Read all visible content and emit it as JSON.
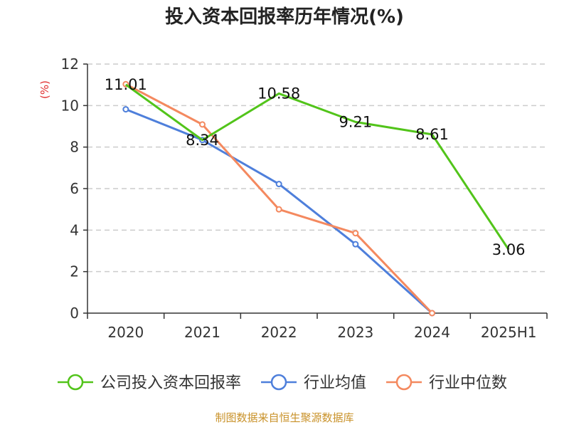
{
  "chart_data": {
    "type": "line",
    "title": "投入资本回报率历年情况(%)",
    "ylabel": "(%)",
    "xlabel": "",
    "categories": [
      "2020",
      "2021",
      "2022",
      "2023",
      "2024",
      "2025H1"
    ],
    "ylim": [
      0,
      12
    ],
    "yticks": [
      0,
      2,
      4,
      6,
      8,
      10,
      12
    ],
    "grid": true,
    "legend_position": "bottom",
    "series": [
      {
        "name": "公司投入资本回报率",
        "color": "#52c41a",
        "values": [
          11.01,
          8.34,
          10.58,
          9.21,
          8.61,
          3.06
        ],
        "labels": [
          "11.01",
          "8.34",
          "10.58",
          "9.21",
          "8.61",
          "3.06"
        ],
        "show_labels": true,
        "markers": false
      },
      {
        "name": "行业均值",
        "color": "#4e7fdb",
        "values": [
          9.82,
          8.34,
          6.22,
          3.32,
          0,
          null
        ],
        "show_labels": false,
        "markers": true
      },
      {
        "name": "行业中位数",
        "color": "#f4895f",
        "values": [
          11.03,
          9.09,
          5.0,
          3.85,
          0,
          null
        ],
        "show_labels": false,
        "markers": true
      }
    ]
  },
  "source": "制图数据来自恒生聚源数据库",
  "colors": {
    "title": "#222222",
    "axis": "#333333",
    "grid": "#cccccc",
    "ylabel": "#e03030",
    "source": "#c9922a"
  }
}
